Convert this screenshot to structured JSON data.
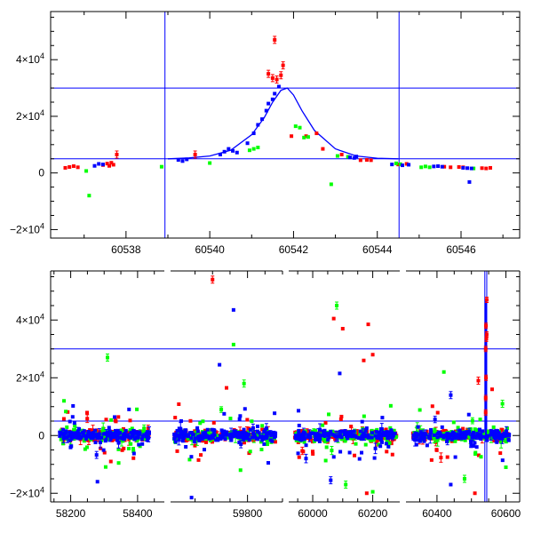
{
  "chart_data": [
    {
      "type": "scatter",
      "panel": "top",
      "xlabel": "",
      "ylabel": "",
      "xlim": [
        60536.2,
        60547.4
      ],
      "ylim": [
        -23000,
        57000
      ],
      "x_ticks": [
        {
          "value": 60538,
          "label": "60538"
        },
        {
          "value": 60540,
          "label": "60540"
        },
        {
          "value": 60542,
          "label": "60542"
        },
        {
          "value": 60544,
          "label": "60544"
        },
        {
          "value": 60546,
          "label": "60546"
        }
      ],
      "y_ticks": [
        {
          "value": -20000,
          "base": "−2×10",
          "exp": "4"
        },
        {
          "value": 0,
          "base": "0",
          "exp": ""
        },
        {
          "value": 20000,
          "base": "2×10",
          "exp": "4"
        },
        {
          "value": 40000,
          "base": "4×10",
          "exp": "4"
        }
      ],
      "hlines": [
        30000,
        5000
      ],
      "vlines": [
        60538.93,
        60544.52
      ],
      "model_curve": {
        "color": "#0000ff",
        "x": [
          60539.0,
          60539.5,
          60540.0,
          60540.5,
          60541.0,
          60541.3,
          60541.5,
          60541.7,
          60541.85,
          60542.0,
          60542.2,
          60542.5,
          60543.0,
          60543.5,
          60544.0,
          60544.5
        ],
        "y": [
          5000,
          5300,
          6000,
          8000,
          13500,
          19500,
          25000,
          29200,
          30000,
          27500,
          22000,
          15000,
          8500,
          6000,
          5200,
          5000
        ]
      },
      "series": [
        {
          "color": "#ff0000",
          "points": [
            [
              60536.55,
              1800
            ],
            [
              60536.65,
              2100
            ],
            [
              60536.75,
              2400
            ],
            [
              60536.85,
              2000
            ],
            [
              60537.45,
              2800
            ],
            [
              60537.55,
              3300
            ],
            [
              60537.6,
              2500
            ],
            [
              60537.65,
              3600
            ],
            [
              60537.7,
              2900
            ],
            [
              60537.78,
              6500
            ],
            [
              60539.65,
              6500
            ],
            [
              60541.4,
              35000
            ],
            [
              60541.5,
              33500
            ],
            [
              60541.55,
              47000
            ],
            [
              60541.6,
              33000
            ],
            [
              60541.7,
              34500
            ],
            [
              60541.75,
              38000
            ],
            [
              60541.95,
              13000
            ],
            [
              60542.3,
              13000
            ],
            [
              60542.55,
              14000
            ],
            [
              60542.7,
              8500
            ],
            [
              60543.15,
              6500
            ],
            [
              60543.6,
              4500
            ],
            [
              60543.75,
              4600
            ],
            [
              60543.85,
              4500
            ],
            [
              60544.5,
              3000
            ],
            [
              60544.7,
              3200
            ],
            [
              60545.6,
              2200
            ],
            [
              60545.75,
              2000
            ],
            [
              60545.95,
              2100
            ],
            [
              60546.05,
              2000
            ],
            [
              60546.5,
              1700
            ],
            [
              60546.6,
              1600
            ],
            [
              60546.7,
              1800
            ]
          ]
        },
        {
          "color": "#00ff00",
          "points": [
            [
              60537.05,
              700
            ],
            [
              60537.12,
              -8000
            ],
            [
              60538.85,
              2200
            ],
            [
              60540.0,
              3500
            ],
            [
              60540.95,
              8000
            ],
            [
              60541.05,
              8500
            ],
            [
              60541.15,
              9000
            ],
            [
              60542.05,
              16500
            ],
            [
              60542.15,
              16000
            ],
            [
              60542.25,
              12500
            ],
            [
              60542.35,
              12700
            ],
            [
              60542.9,
              -4000
            ],
            [
              60543.05,
              6000
            ],
            [
              60543.3,
              5700
            ],
            [
              60544.45,
              3400
            ],
            [
              60544.55,
              3100
            ],
            [
              60545.05,
              2000
            ],
            [
              60545.15,
              2300
            ],
            [
              60545.25,
              2000
            ],
            [
              60546.3,
              1600
            ]
          ]
        },
        {
          "color": "#0000ff",
          "points": [
            [
              60537.25,
              2500
            ],
            [
              60537.35,
              3200
            ],
            [
              60537.45,
              3000
            ],
            [
              60539.25,
              4600
            ],
            [
              60539.35,
              4200
            ],
            [
              60539.45,
              4800
            ],
            [
              60540.25,
              6500
            ],
            [
              60540.35,
              7500
            ],
            [
              60540.45,
              8500
            ],
            [
              60540.55,
              7800
            ],
            [
              60540.65,
              7200
            ],
            [
              60540.9,
              10500
            ],
            [
              60541.05,
              14000
            ],
            [
              60541.15,
              17000
            ],
            [
              60541.25,
              19000
            ],
            [
              60541.35,
              22000
            ],
            [
              60541.4,
              24500
            ],
            [
              60541.5,
              26000
            ],
            [
              60541.55,
              28000
            ],
            [
              60541.65,
              30500
            ],
            [
              60543.35,
              5500
            ],
            [
              60543.45,
              5300
            ],
            [
              60543.5,
              5800
            ],
            [
              60544.35,
              3000
            ],
            [
              60544.6,
              2700
            ],
            [
              60544.75,
              2900
            ],
            [
              60545.35,
              2300
            ],
            [
              60545.45,
              2400
            ],
            [
              60545.55,
              2200
            ],
            [
              60546.05,
              1800
            ],
            [
              60546.15,
              1700
            ],
            [
              60546.2,
              -3200
            ],
            [
              60546.25,
              1600
            ]
          ]
        }
      ]
    },
    {
      "type": "scatter",
      "panel": "bottom",
      "xlabel": "",
      "ylabel": "",
      "broken_axis": true,
      "segments": [
        {
          "xlim": [
            58140,
            58480
          ],
          "x_ticks": [
            {
              "value": 58200,
              "label": "58200"
            },
            {
              "value": 58400,
              "label": "58400"
            }
          ]
        },
        {
          "xlim": [
            59580,
            59900
          ],
          "x_ticks": [
            {
              "value": 59800,
              "label": "59800"
            }
          ]
        },
        {
          "xlim": [
            59920,
            60290
          ],
          "x_ticks": [
            {
              "value": 60000,
              "label": "60000"
            },
            {
              "value": 60200,
              "label": "60200"
            }
          ]
        },
        {
          "xlim": [
            60310,
            60640
          ],
          "x_ticks": [
            {
              "value": 60400,
              "label": "60400"
            },
            {
              "value": 60600,
              "label": "60600"
            }
          ]
        }
      ],
      "ylim": [
        -23000,
        57000
      ],
      "y_ticks": [
        {
          "value": -20000,
          "base": "−2×10",
          "exp": "4"
        },
        {
          "value": 0,
          "base": "0",
          "exp": ""
        },
        {
          "value": 20000,
          "base": "2×10",
          "exp": "4"
        },
        {
          "value": 40000,
          "base": "4×10",
          "exp": "4"
        }
      ],
      "hlines": [
        30000,
        5000
      ],
      "vlines": [
        60538.9,
        60544.5
      ],
      "data_seasons": [
        {
          "segment": 0,
          "x_range": [
            58165,
            58435
          ]
        },
        {
          "segment": 1,
          "x_range": [
            59590,
            59880
          ]
        },
        {
          "segment": 2,
          "x_range": [
            59940,
            60280
          ]
        },
        {
          "segment": 3,
          "x_range": [
            60330,
            60610
          ]
        }
      ],
      "scatter_spread": {
        "typical_halfwidth": 2000,
        "outlier_halfrange": [
          -20000,
          45000
        ]
      },
      "event_spike": {
        "x": 60542,
        "peak": 47000,
        "color": "#ff0000"
      },
      "outliers": [
        {
          "color": "#ff0000",
          "x": 59700,
          "y": 54000
        },
        {
          "color": "#0000ff",
          "x": 59760,
          "y": 43500
        },
        {
          "color": "#00ff00",
          "x": 60080,
          "y": 45000
        },
        {
          "color": "#00ff00",
          "x": 58310,
          "y": 27000
        },
        {
          "color": "#ff0000",
          "x": 60070,
          "y": 40500
        },
        {
          "color": "#ff0000",
          "x": 60185,
          "y": 38500
        },
        {
          "color": "#ff0000",
          "x": 60100,
          "y": 37000
        },
        {
          "color": "#0000ff",
          "x": 59720,
          "y": 24500
        },
        {
          "color": "#00ff00",
          "x": 59760,
          "y": 31500
        },
        {
          "color": "#ff0000",
          "x": 59740,
          "y": 16500
        },
        {
          "color": "#00ff00",
          "x": 59790,
          "y": 18000
        },
        {
          "color": "#0000ff",
          "x": 60090,
          "y": 21500
        },
        {
          "color": "#ff0000",
          "x": 60170,
          "y": 26000
        },
        {
          "color": "#ff0000",
          "x": 60200,
          "y": 28000
        },
        {
          "color": "#0000ff",
          "x": 60440,
          "y": 14000
        },
        {
          "color": "#00ff00",
          "x": 60420,
          "y": 22000
        },
        {
          "color": "#ff0000",
          "x": 60520,
          "y": 19000
        },
        {
          "color": "#ff0000",
          "x": 60560,
          "y": 16000
        },
        {
          "color": "#00ff00",
          "x": 60590,
          "y": 11000
        },
        {
          "color": "#00ff00",
          "x": 58180,
          "y": 12000
        },
        {
          "color": "#0000ff",
          "x": 58280,
          "y": -16000
        },
        {
          "color": "#ff0000",
          "x": 58320,
          "y": -9000
        },
        {
          "color": "#0000ff",
          "x": 59640,
          "y": -21500
        },
        {
          "color": "#ff0000",
          "x": 59660,
          "y": -8500
        },
        {
          "color": "#00ff00",
          "x": 59780,
          "y": -12000
        },
        {
          "color": "#ff0000",
          "x": 60180,
          "y": -20000
        },
        {
          "color": "#00ff00",
          "x": 60200,
          "y": -19500
        },
        {
          "color": "#00ff00",
          "x": 60110,
          "y": -17000
        },
        {
          "color": "#0000ff",
          "x": 60060,
          "y": -15500
        },
        {
          "color": "#00ff00",
          "x": 60480,
          "y": -15000
        },
        {
          "color": "#0000ff",
          "x": 60440,
          "y": -17000
        },
        {
          "color": "#ff0000",
          "x": 60510,
          "y": -20000
        },
        {
          "color": "#00ff00",
          "x": 60600,
          "y": -11000
        }
      ]
    }
  ]
}
